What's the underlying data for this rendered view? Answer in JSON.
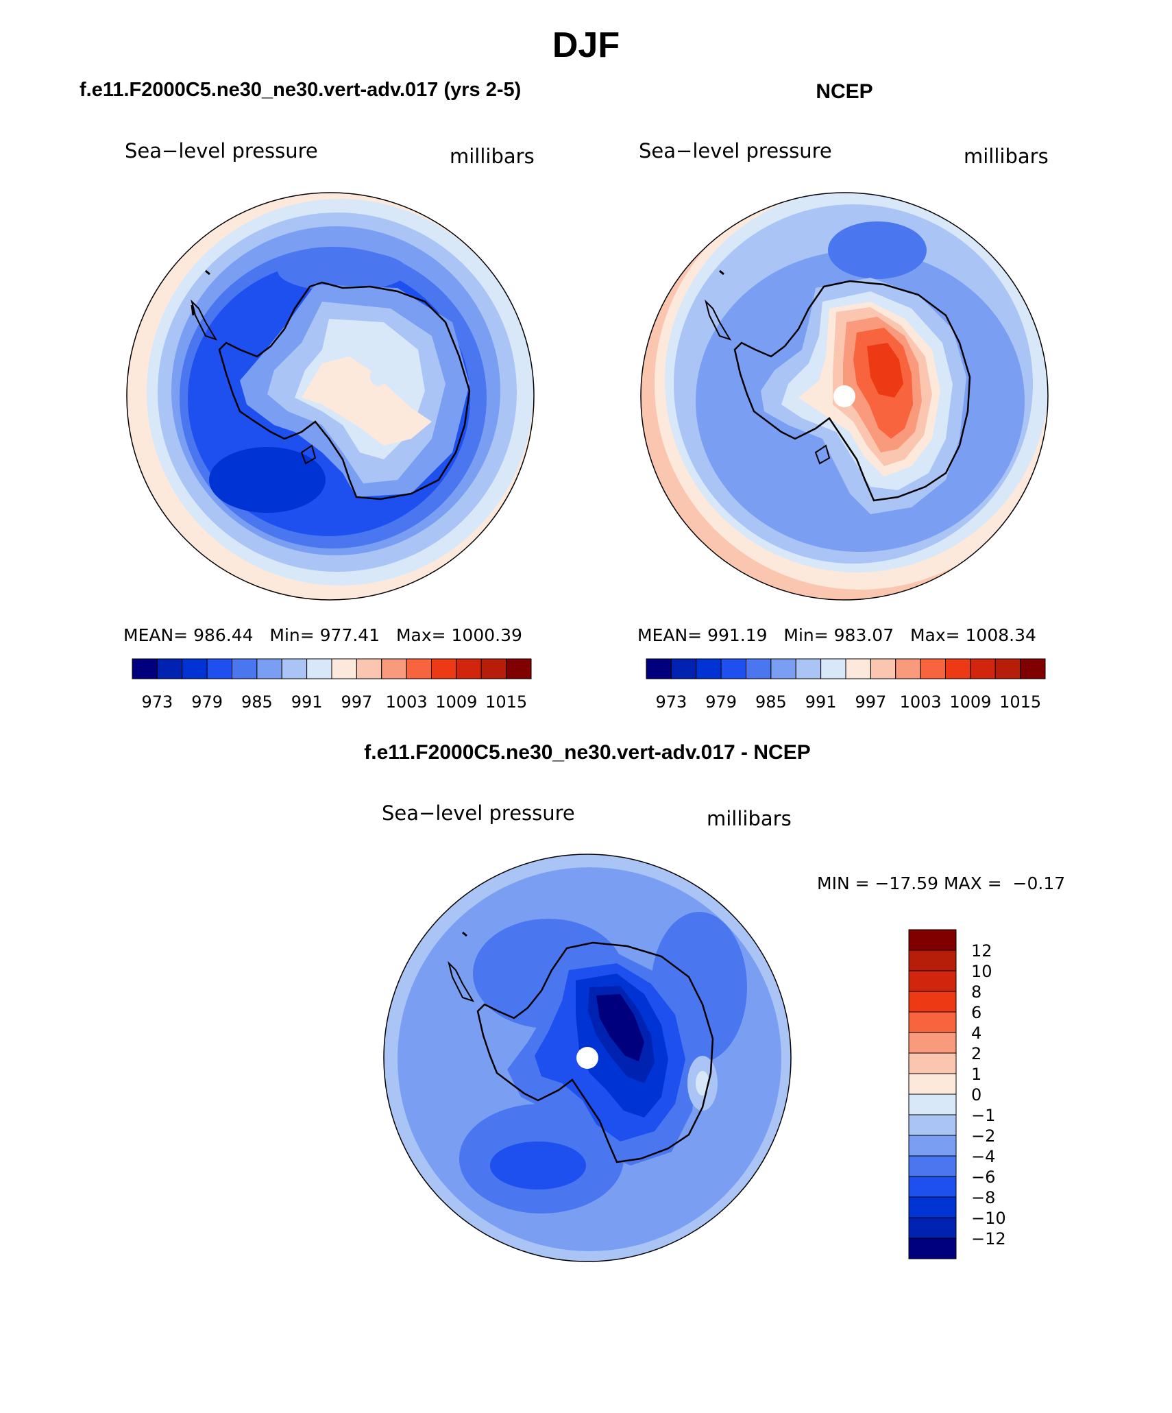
{
  "figure": {
    "main_title": "DJF",
    "colors": {
      "ocean_frame": "#000000",
      "background": "#ffffff"
    }
  },
  "panels": [
    {
      "id": "model",
      "title": "f.e11.F2000C5.ne30_ne30.vert-adv.017 (yrs 2-5)",
      "left_label": "Sea−level pressure",
      "right_label": "millibars",
      "stats": "MEAN= 986.44   Min= 977.41   Max= 1000.39"
    },
    {
      "id": "obs",
      "title": "NCEP",
      "left_label": "Sea−level pressure",
      "right_label": "millibars",
      "stats": "MEAN= 991.19   Min= 983.07   Max= 1008.34"
    },
    {
      "id": "diff",
      "title": "f.e11.F2000C5.ne30_ne30.vert-adv.017 - NCEP",
      "left_label": "Sea−level pressure",
      "right_label": "millibars",
      "stats": "MIN = −17.59 MAX =  −0.17"
    }
  ],
  "colorbars": {
    "abs": {
      "colors": [
        "#00007f",
        "#0022b0",
        "#0033d4",
        "#1e4fef",
        "#4a77ef",
        "#7a9ff2",
        "#a9c4f5",
        "#d8e8f8",
        "#fde8dc",
        "#fbc6b0",
        "#f99a7d",
        "#f7643d",
        "#ed3a14",
        "#d1260d",
        "#b61e0a",
        "#800000"
      ],
      "tick_labels": [
        "973",
        "979",
        "985",
        "991",
        "997",
        "1003",
        "1009",
        "1015"
      ]
    },
    "diff": {
      "colors": [
        "#00007f",
        "#0022b0",
        "#0033d4",
        "#1e4fef",
        "#4a77ef",
        "#7a9ff2",
        "#a9c4f5",
        "#d8e8f8",
        "#fde8dc",
        "#fbc6b0",
        "#f99a7d",
        "#f7643d",
        "#ed3a14",
        "#d1260d",
        "#b61e0a",
        "#800000"
      ],
      "tick_labels": [
        "12",
        "10",
        "8",
        "6",
        "4",
        "2",
        "1",
        "0",
        "−1",
        "−2",
        "−4",
        "−6",
        "−8",
        "−10",
        "−12"
      ]
    }
  }
}
